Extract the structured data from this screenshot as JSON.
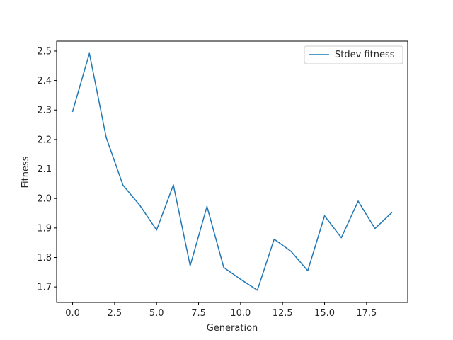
{
  "chart_data": {
    "type": "line",
    "title": "",
    "xlabel": "Generation",
    "ylabel": "Fitness",
    "xlim": [
      -0.95,
      19.95
    ],
    "ylim": [
      1.6475,
      2.5335
    ],
    "grid": false,
    "legend_position": "top-right",
    "x_ticks": [
      0.0,
      2.5,
      5.0,
      7.5,
      10.0,
      12.5,
      15.0,
      17.5
    ],
    "x_tick_labels": [
      "0.0",
      "2.5",
      "5.0",
      "7.5",
      "10.0",
      "12.5",
      "15.0",
      "17.5"
    ],
    "y_ticks": [
      1.7,
      1.8,
      1.9,
      2.0,
      2.1,
      2.2,
      2.3,
      2.4,
      2.5
    ],
    "y_tick_labels": [
      "1.7",
      "1.8",
      "1.9",
      "2.0",
      "2.1",
      "2.2",
      "2.3",
      "2.4",
      "2.5"
    ],
    "series": [
      {
        "name": "Stdev fitness",
        "color": "#1f77b4",
        "x": [
          0,
          1,
          2,
          3,
          4,
          5,
          6,
          7,
          8,
          9,
          10,
          11,
          12,
          13,
          14,
          15,
          16,
          17,
          18,
          19
        ],
        "values": [
          2.295,
          2.492,
          2.207,
          2.045,
          1.977,
          1.893,
          2.046,
          1.772,
          1.973,
          1.766,
          1.726,
          1.689,
          1.862,
          1.821,
          1.755,
          1.941,
          1.867,
          1.991,
          1.898,
          1.952
        ]
      }
    ]
  }
}
